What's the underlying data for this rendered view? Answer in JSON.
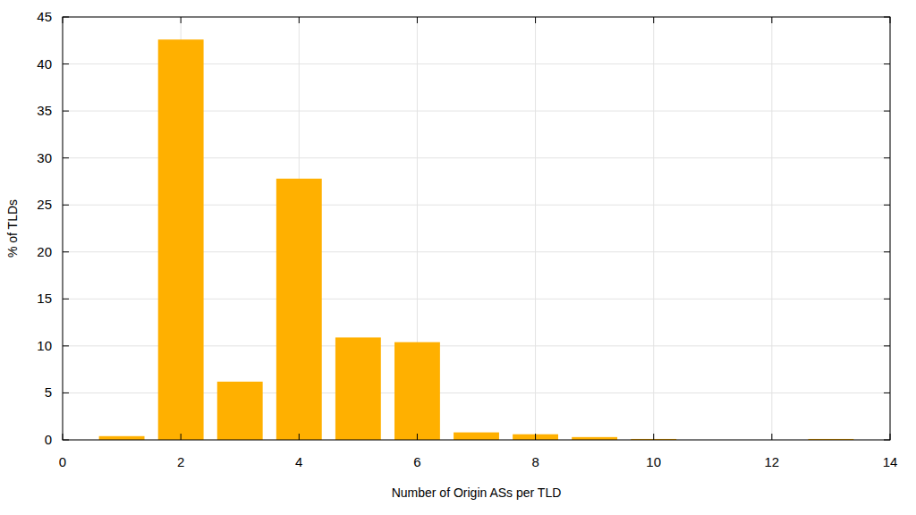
{
  "chart_data": {
    "type": "bar",
    "x": [
      1,
      2,
      3,
      4,
      5,
      6,
      7,
      8,
      9,
      10,
      13
    ],
    "values": [
      0.4,
      42.6,
      6.2,
      27.8,
      10.9,
      10.4,
      0.8,
      0.6,
      0.3,
      0.1,
      0.1
    ],
    "color": "#ffb000",
    "x_label": "Number of Origin ASs per TLD",
    "y_label": "% of TLDs",
    "xlim": [
      0,
      14
    ],
    "xticks": [
      0,
      2,
      4,
      6,
      8,
      10,
      12,
      14
    ],
    "ylim": [
      0,
      45
    ],
    "yticks": [
      0,
      5,
      10,
      15,
      20,
      25,
      30,
      35,
      40,
      45
    ],
    "grid": true
  }
}
